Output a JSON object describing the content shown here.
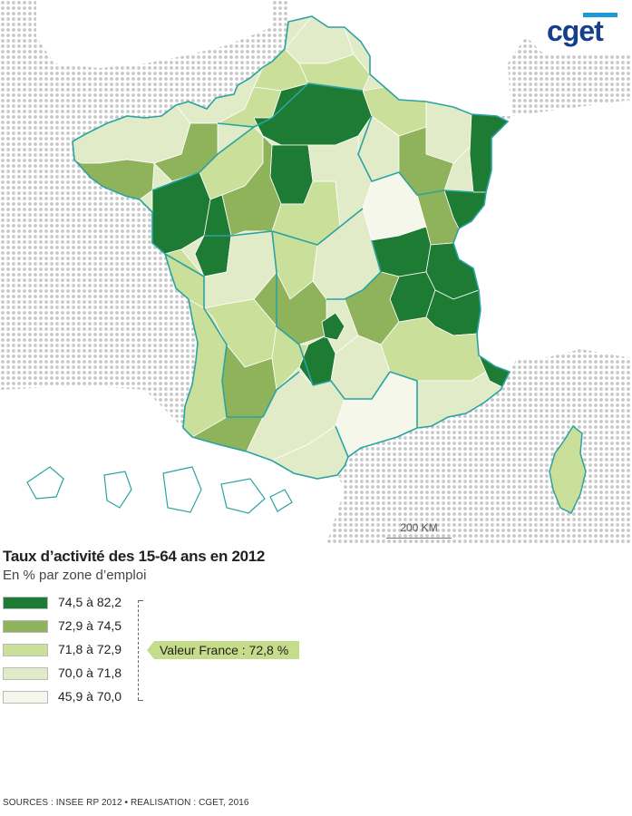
{
  "logo": {
    "text": "cget"
  },
  "scale_bar": {
    "label": "200 KM"
  },
  "title": "Taux d’activité des 15-64 ans en 2012",
  "subtitle": "En % par zone d’emploi",
  "legend": [
    {
      "label": "74,5 à 82,2",
      "color": "#1e7b34"
    },
    {
      "label": "72,9 à 74,5",
      "color": "#8fb35a"
    },
    {
      "label": "71,8 à 72,9",
      "color": "#cadf99"
    },
    {
      "label": "70,0 à 71,8",
      "color": "#e1ebc8"
    },
    {
      "label": "45,9 à 70,0",
      "color": "#f4f7ea"
    }
  ],
  "reference": {
    "label": "Valeur France : 72,8 %"
  },
  "sources": "SOURCES : INSEE RP 2012 • REALISATION : CGET, 2016",
  "colors": {
    "region_border": "#2aa3a3",
    "dot_pattern": "#c8c8c8",
    "callout": "#c5dc8a",
    "logo_blue": "#163f8c",
    "logo_accent": "#1a9bd8"
  }
}
